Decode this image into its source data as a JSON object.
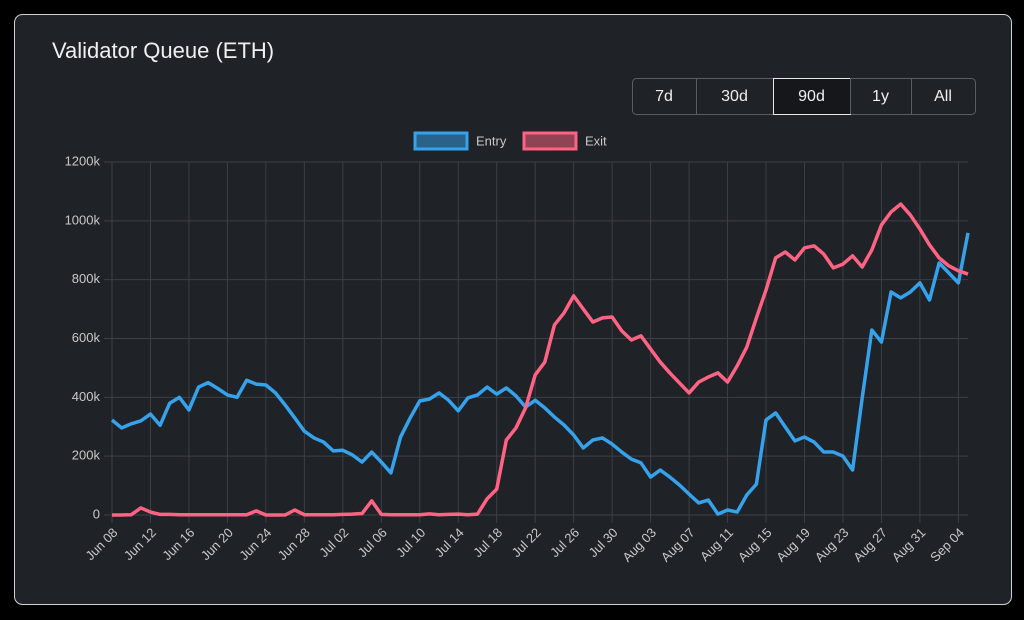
{
  "chart_data": {
    "type": "line",
    "title": "Validator Queue (ETH)",
    "categories": [
      "Jun 08",
      null,
      null,
      null,
      "Jun 12",
      null,
      null,
      null,
      "Jun 16",
      null,
      null,
      null,
      "Jun 20",
      null,
      null,
      null,
      "Jun 24",
      null,
      null,
      null,
      "Jun 28",
      null,
      null,
      null,
      "Jul 02",
      null,
      null,
      null,
      "Jul 06",
      null,
      null,
      null,
      "Jul 10",
      null,
      null,
      null,
      "Jul 14",
      null,
      null,
      null,
      "Jul 18",
      null,
      null,
      null,
      "Jul 22",
      null,
      null,
      null,
      "Jul 26",
      null,
      null,
      null,
      "Jul 30",
      null,
      null,
      null,
      "Aug 03",
      null,
      null,
      null,
      "Aug 07",
      null,
      null,
      null,
      "Aug 11",
      null,
      null,
      null,
      "Aug 15",
      null,
      null,
      null,
      "Aug 19",
      null,
      null,
      null,
      "Aug 23",
      null,
      null,
      null,
      "Aug 27",
      null,
      null,
      null,
      "Aug 31",
      null,
      null,
      null,
      "Sep 04",
      null
    ],
    "series": [
      {
        "name": "Entry",
        "color": "#36a2eb",
        "values": [
          323000,
          296000,
          310000,
          320000,
          343000,
          305000,
          380000,
          400000,
          357000,
          435000,
          450000,
          430000,
          408000,
          400000,
          458000,
          445000,
          442000,
          415000,
          374000,
          330000,
          285000,
          262000,
          248000,
          218000,
          220000,
          204000,
          180000,
          214000,
          180000,
          143000,
          265000,
          330000,
          388000,
          394000,
          415000,
          390000,
          354000,
          398000,
          408000,
          435000,
          411000,
          432000,
          405000,
          367000,
          390000,
          364000,
          333000,
          306000,
          272000,
          228000,
          255000,
          262000,
          241000,
          214000,
          190000,
          177000,
          129000,
          153000,
          129000,
          102000,
          71000,
          41000,
          51000,
          3000,
          17000,
          10000,
          68000,
          105000,
          323000,
          347000,
          299000,
          252000,
          265000,
          248000,
          214000,
          214000,
          200000,
          153000,
          398000,
          629000,
          588000,
          758000,
          738000,
          758000,
          789000,
          731000,
          857000,
          823000,
          789000,
          959000
        ]
      },
      {
        "name": "Exit",
        "color": "#ff6384",
        "values": [
          0,
          0,
          1000,
          24000,
          10000,
          2000,
          2000,
          1000,
          1000,
          1000,
          1000,
          1000,
          1000,
          1000,
          1000,
          14000,
          0,
          0,
          0,
          17000,
          1000,
          1000,
          1000,
          1000,
          2000,
          3000,
          5000,
          48000,
          2000,
          1000,
          1000,
          1000,
          1000,
          4000,
          1000,
          2000,
          3000,
          1000,
          3000,
          55000,
          88000,
          255000,
          296000,
          364000,
          476000,
          520000,
          646000,
          687000,
          745000,
          700000,
          656000,
          670000,
          673000,
          626000,
          595000,
          609000,
          564000,
          520000,
          483000,
          449000,
          415000,
          452000,
          469000,
          483000,
          452000,
          507000,
          571000,
          670000,
          765000,
          874000,
          894000,
          867000,
          908000,
          915000,
          887000,
          840000,
          853000,
          881000,
          843000,
          901000,
          986000,
          1030000,
          1057000,
          1020000,
          972000,
          918000,
          874000,
          847000,
          830000,
          819000
        ]
      }
    ],
    "ylim": [
      0,
      1200000
    ],
    "yticks": [
      0,
      {
        "value": 200000,
        "label": "200k"
      },
      {
        "value": 400000,
        "label": "400k"
      },
      {
        "value": 600000,
        "label": "600k"
      },
      {
        "value": 800000,
        "label": "800k"
      },
      {
        "value": 1000000,
        "label": "1000k"
      },
      {
        "value": 1200000,
        "label": "1200k"
      }
    ],
    "grid": true,
    "legend": "top"
  },
  "controls": {
    "options": [
      "7d",
      "30d",
      "90d",
      "1y",
      "All"
    ],
    "active": 2
  }
}
